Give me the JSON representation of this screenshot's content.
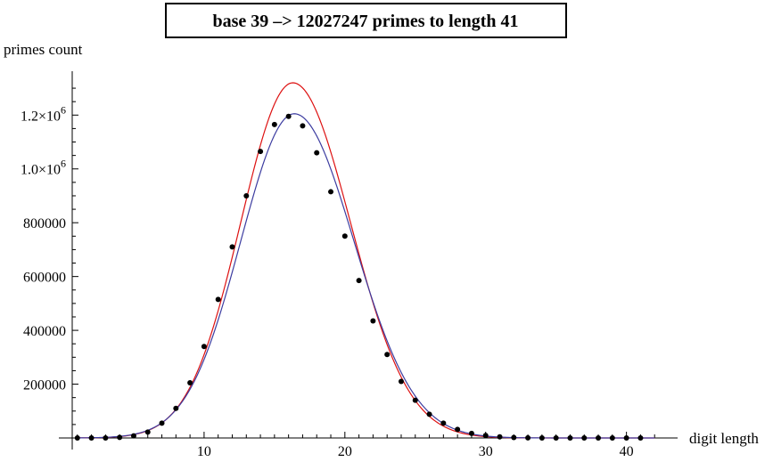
{
  "chart_data": {
    "type": "scatter",
    "title": "base 39  –>  12027247 primes to length 41",
    "xlabel": "digit length",
    "ylabel": "primes count",
    "xlim": [
      0,
      43
    ],
    "ylim": [
      0,
      1330000
    ],
    "x_ticks": [
      {
        "value": 10,
        "label": "10"
      },
      {
        "value": 20,
        "label": "20"
      },
      {
        "value": 30,
        "label": "30"
      },
      {
        "value": 40,
        "label": "40"
      }
    ],
    "y_ticks": [
      {
        "value": 200000,
        "label": "200000",
        "mantissa": "",
        "exp": ""
      },
      {
        "value": 400000,
        "label": "400000",
        "mantissa": "",
        "exp": ""
      },
      {
        "value": 600000,
        "label": "600000",
        "mantissa": "",
        "exp": ""
      },
      {
        "value": 800000,
        "label": "800000",
        "mantissa": "",
        "exp": ""
      },
      {
        "value": 1000000,
        "label": "",
        "mantissa": "1.0×10",
        "exp": "6"
      },
      {
        "value": 1200000,
        "label": "",
        "mantissa": "1.2×10",
        "exp": "6"
      }
    ],
    "series": [
      {
        "kind": "points",
        "color": "#000000",
        "x": [
          1,
          2,
          3,
          4,
          5,
          6,
          7,
          8,
          9,
          10,
          11,
          12,
          13,
          14,
          15,
          16,
          17,
          18,
          19,
          20,
          21,
          22,
          23,
          24,
          25,
          26,
          27,
          28,
          29,
          30,
          31,
          32,
          33,
          34,
          35,
          36,
          37,
          38,
          39,
          40,
          41
        ],
        "values": [
          0,
          0,
          0,
          2000,
          8000,
          22000,
          55000,
          110000,
          205000,
          340000,
          515000,
          710000,
          900000,
          1065000,
          1165000,
          1195000,
          1160000,
          1060000,
          915000,
          750000,
          585000,
          435000,
          310000,
          210000,
          140000,
          88000,
          55000,
          32000,
          17000,
          9000,
          4000,
          1500,
          500,
          100,
          0,
          0,
          0,
          0,
          0,
          0,
          0
        ]
      },
      {
        "kind": "curve",
        "color": "#dd1111",
        "peak_x": 16.3,
        "peak_y": 1320000,
        "sigma_left": 3.7,
        "sigma_right": 4.1
      },
      {
        "kind": "curve",
        "color": "#3c3ca0",
        "peak_x": 16.4,
        "peak_y": 1205000,
        "sigma_left": 3.8,
        "sigma_right": 4.25
      }
    ]
  }
}
